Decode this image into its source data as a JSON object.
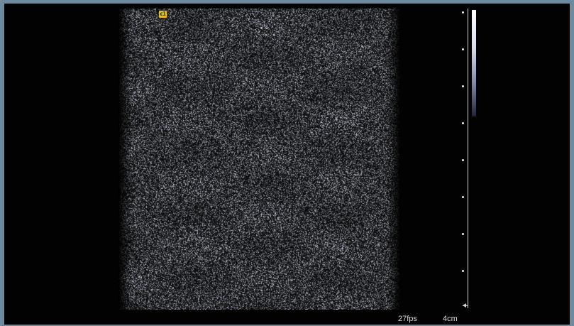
{
  "image_marker": {
    "label": "ϵ1",
    "color": "#e3c21f"
  },
  "depth_scale": {
    "tick_count": 8,
    "icon": "depth-scale-icon"
  },
  "grayscale_bar": {
    "icon": "grayscale-bar-icon"
  },
  "status": {
    "fps": "27fps",
    "depth": "4cm"
  },
  "colors": {
    "background": "#6e8a9f",
    "image_area": "#111318",
    "marker": "#e3c21f",
    "text": "#d7dbe0"
  }
}
